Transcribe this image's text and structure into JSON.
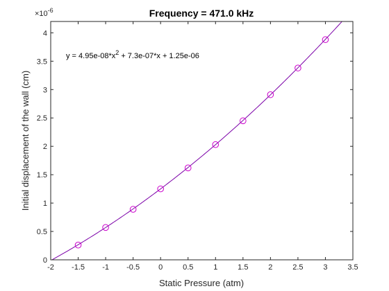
{
  "chart_data": {
    "type": "scatter",
    "title": "Frequency = 471.0 kHz",
    "xlabel": "Static Pressure (atm)",
    "ylabel": "Initial displacement of the wall (cm)",
    "xlim": [
      -2,
      3.5
    ],
    "ylim": [
      0,
      4.2e-06
    ],
    "y_exponent_label": "×10",
    "y_exponent_power": "-6",
    "x_ticks": [
      -2,
      -1.5,
      -1,
      -0.5,
      0,
      0.5,
      1,
      1.5,
      2,
      2.5,
      3,
      3.5
    ],
    "x_tick_labels": [
      "-2",
      "-1.5",
      "-1",
      "-0.5",
      "0",
      "0.5",
      "1",
      "1.5",
      "2",
      "2.5",
      "3",
      "3.5"
    ],
    "y_ticks": [
      0,
      5e-07,
      1e-06,
      1.5e-06,
      2e-06,
      2.5e-06,
      3e-06,
      3.5e-06,
      4e-06
    ],
    "y_tick_labels": [
      "0",
      "0.5",
      "1",
      "1.5",
      "2",
      "2.5",
      "3",
      "3.5",
      "4"
    ],
    "grid": false,
    "series": [
      {
        "kind": "markers",
        "marker": "circle",
        "color": "#cc00cc",
        "x": [
          -1.5,
          -1,
          -0.5,
          0,
          0.5,
          1,
          1.5,
          2,
          2.5,
          3
        ],
        "y": [
          2.6e-07,
          5.7e-07,
          8.9e-07,
          1.25e-06,
          1.62e-06,
          2.03e-06,
          2.45e-06,
          2.91e-06,
          3.38e-06,
          3.88e-06
        ]
      },
      {
        "kind": "fit-line",
        "color": "#7b00a8",
        "coefficients": {
          "a": 4.95e-08,
          "b": 7.3e-07,
          "c": 1.25e-06
        }
      }
    ],
    "annotation": {
      "prefix": "y = 4.95e-08*x",
      "superscript": "2",
      "suffix": " + 7.3e-07*x + 1.25e-06"
    }
  }
}
